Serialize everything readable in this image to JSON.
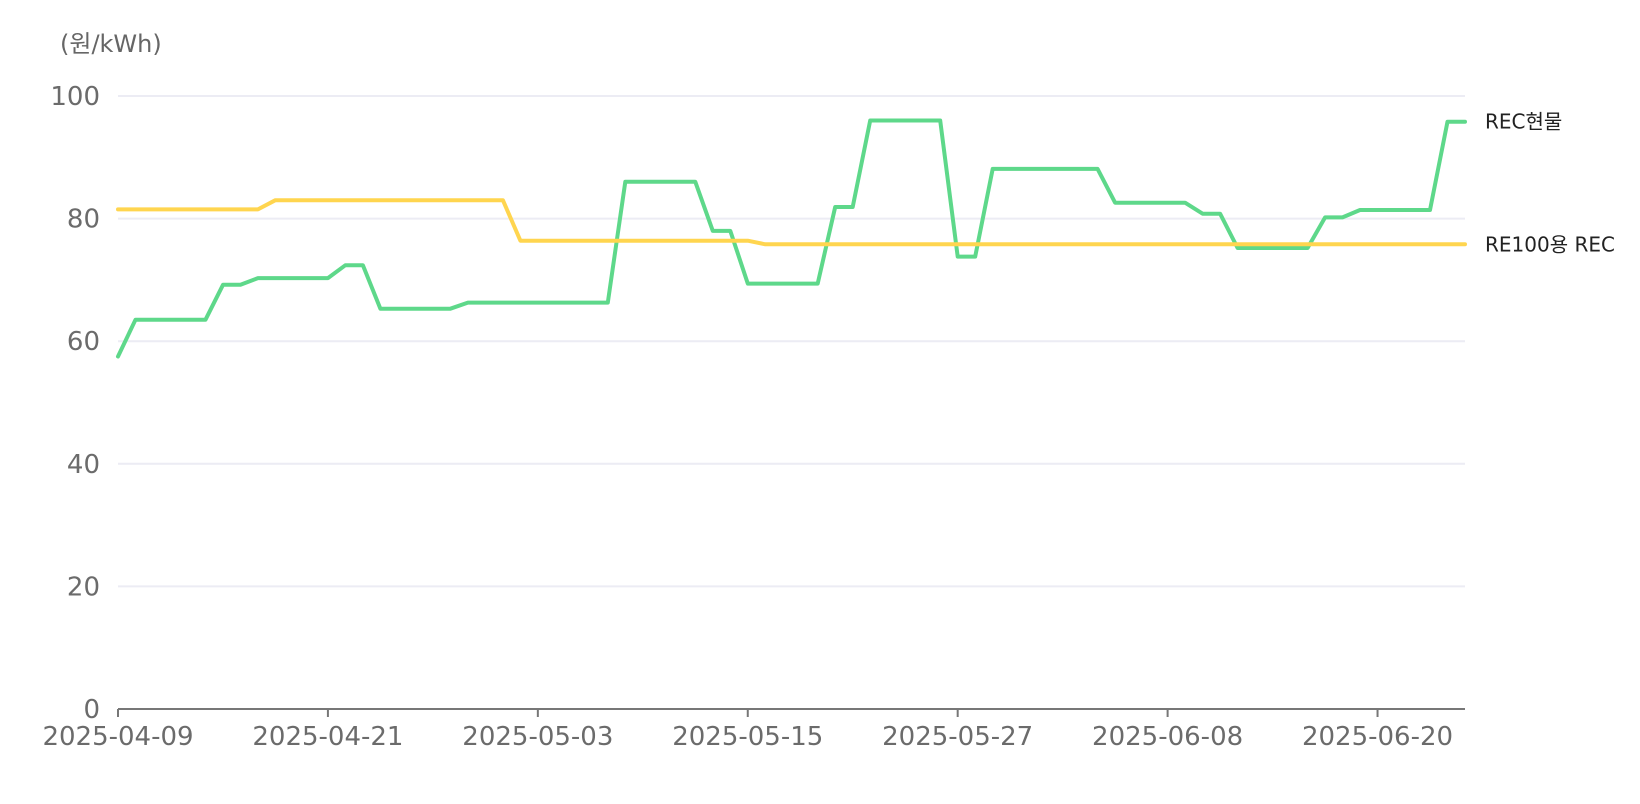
{
  "chart_data": {
    "type": "line",
    "ylabel": "(원/kWh)",
    "ylim": [
      0,
      100
    ],
    "yticks": [
      0,
      20,
      40,
      60,
      80,
      100
    ],
    "xlim": [
      "2025-04-09",
      "2025-06-25"
    ],
    "xticks": [
      "2025-04-09",
      "2025-04-21",
      "2025-05-03",
      "2025-05-15",
      "2025-05-27",
      "2025-06-08",
      "2025-06-20"
    ],
    "grid": true,
    "legend": "end-of-line labels",
    "series": [
      {
        "name": "REC현물",
        "color": "#5ed88a",
        "points": [
          [
            "2025-04-09",
            57.5
          ],
          [
            "2025-04-10",
            63.5
          ],
          [
            "2025-04-14",
            63.5
          ],
          [
            "2025-04-15",
            69.2
          ],
          [
            "2025-04-16",
            69.2
          ],
          [
            "2025-04-17",
            70.3
          ],
          [
            "2025-04-21",
            70.3
          ],
          [
            "2025-04-22",
            72.4
          ],
          [
            "2025-04-23",
            72.4
          ],
          [
            "2025-04-24",
            65.3
          ],
          [
            "2025-04-28",
            65.3
          ],
          [
            "2025-04-29",
            66.3
          ],
          [
            "2025-05-07",
            66.3
          ],
          [
            "2025-05-08",
            86.0
          ],
          [
            "2025-05-12",
            86.0
          ],
          [
            "2025-05-13",
            78.0
          ],
          [
            "2025-05-14",
            78.0
          ],
          [
            "2025-05-15",
            69.4
          ],
          [
            "2025-05-19",
            69.4
          ],
          [
            "2025-05-20",
            81.9
          ],
          [
            "2025-05-21",
            81.9
          ],
          [
            "2025-05-22",
            96.0
          ],
          [
            "2025-05-26",
            96.0
          ],
          [
            "2025-05-27",
            73.8
          ],
          [
            "2025-05-28",
            73.8
          ],
          [
            "2025-05-29",
            88.1
          ],
          [
            "2025-06-04",
            88.1
          ],
          [
            "2025-06-05",
            82.6
          ],
          [
            "2025-06-09",
            82.6
          ],
          [
            "2025-06-10",
            80.8
          ],
          [
            "2025-06-11",
            80.8
          ],
          [
            "2025-06-12",
            75.2
          ],
          [
            "2025-06-16",
            75.2
          ],
          [
            "2025-06-17",
            80.2
          ],
          [
            "2025-06-18",
            80.2
          ],
          [
            "2025-06-19",
            81.4
          ],
          [
            "2025-06-23",
            81.4
          ],
          [
            "2025-06-24",
            95.8
          ],
          [
            "2025-06-25",
            95.8
          ]
        ]
      },
      {
        "name": "RE100용 REC",
        "color": "#ffd54f",
        "points": [
          [
            "2025-04-09",
            81.5
          ],
          [
            "2025-04-17",
            81.5
          ],
          [
            "2025-04-18",
            83.0
          ],
          [
            "2025-05-01",
            83.0
          ],
          [
            "2025-05-02",
            76.4
          ],
          [
            "2025-05-15",
            76.4
          ],
          [
            "2025-05-16",
            75.8
          ],
          [
            "2025-06-25",
            75.8
          ]
        ]
      }
    ]
  }
}
